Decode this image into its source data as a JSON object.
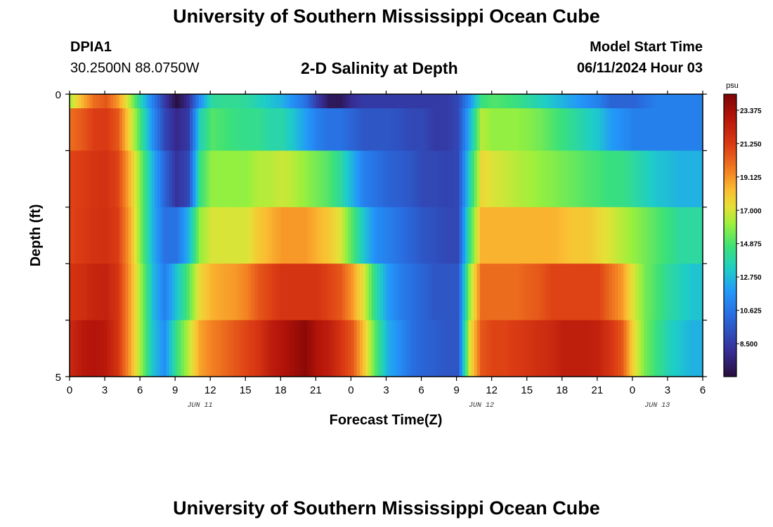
{
  "page": {
    "title": "University of Southern Mississippi Ocean Cube",
    "station_id": "DPIA1",
    "coordinates": "30.2500N  88.0750W",
    "subtitle": "2-D Salinity at Depth",
    "model_start_label": "Model Start Time",
    "model_start_value": "06/11/2024 Hour 03",
    "footer_title": "University of Southern Mississippi Ocean Cube"
  },
  "chart_data": {
    "type": "heatmap",
    "title": "2-D Salinity at Depth",
    "xlabel": "Forecast Time(Z)",
    "ylabel": "Depth (ft)",
    "units": "psu",
    "x_ticks": [
      "0",
      "3",
      "6",
      "9",
      "12",
      "15",
      "18",
      "21",
      "0",
      "3",
      "6",
      "9",
      "12",
      "15",
      "18",
      "21",
      "0",
      "3",
      "6"
    ],
    "date_labels": [
      {
        "label": "JUN 11",
        "hour": 11
      },
      {
        "label": "JUN 12",
        "hour": 35
      },
      {
        "label": "JUN 13",
        "hour": 50
      }
    ],
    "y_ticks": [
      "0",
      "5"
    ],
    "depth_range": [
      0,
      5
    ],
    "time_range_hours": [
      0,
      54
    ],
    "layer_depths_ft": [
      0,
      0.5,
      1.5,
      2.5,
      3.5,
      4.5
    ],
    "colorbar": {
      "label": "psu",
      "range": [
        6.4,
        24.4
      ],
      "ticks": [
        "23.375",
        "21.250",
        "19.125",
        "17.000",
        "14.875",
        "12.750",
        "10.625",
        "8.500"
      ]
    },
    "profiles": [
      {
        "hour": 0,
        "values": [
          16.5,
          20.0,
          21.0,
          21.0,
          21.5,
          22.0
        ]
      },
      {
        "hour": 1,
        "values": [
          18.5,
          20.5,
          21.2,
          21.3,
          21.8,
          22.8
        ]
      },
      {
        "hour": 2,
        "values": [
          20.0,
          21.2,
          21.5,
          21.6,
          22.2,
          23.0
        ]
      },
      {
        "hour": 3,
        "values": [
          20.5,
          21.3,
          21.6,
          21.7,
          22.3,
          22.7
        ]
      },
      {
        "hour": 4,
        "values": [
          19.0,
          20.5,
          21.0,
          21.2,
          21.5,
          21.5
        ]
      },
      {
        "hour": 5,
        "values": [
          16.5,
          17.5,
          18.5,
          18.8,
          19.0,
          19.0
        ]
      },
      {
        "hour": 6,
        "values": [
          13.5,
          14.5,
          15.5,
          15.5,
          16.0,
          16.0
        ]
      },
      {
        "hour": 7,
        "values": [
          11.0,
          11.5,
          12.5,
          12.5,
          12.8,
          13.0
        ]
      },
      {
        "hour": 8,
        "values": [
          8.5,
          9.0,
          10.0,
          10.5,
          11.0,
          11.5
        ]
      },
      {
        "hour": 9,
        "values": [
          6.5,
          7.8,
          8.2,
          10.5,
          13.0,
          14.5
        ]
      },
      {
        "hour": 10,
        "values": [
          8.0,
          8.5,
          9.0,
          12.5,
          15.0,
          16.5
        ]
      },
      {
        "hour": 11,
        "values": [
          11.5,
          13.5,
          14.5,
          16.0,
          17.5,
          18.8
        ]
      },
      {
        "hour": 12,
        "values": [
          14.0,
          15.0,
          16.0,
          17.0,
          18.5,
          19.5
        ]
      },
      {
        "hour": 13,
        "values": [
          14.2,
          14.8,
          16.0,
          17.0,
          18.8,
          20.0
        ]
      },
      {
        "hour": 14,
        "values": [
          14.2,
          14.5,
          16.0,
          17.0,
          19.0,
          20.5
        ]
      },
      {
        "hour": 15,
        "values": [
          14.0,
          14.3,
          16.0,
          17.0,
          19.5,
          21.0
        ]
      },
      {
        "hour": 16,
        "values": [
          13.5,
          14.3,
          16.5,
          18.0,
          20.5,
          21.5
        ]
      },
      {
        "hour": 17,
        "values": [
          13.0,
          13.8,
          16.5,
          18.5,
          21.0,
          22.5
        ]
      },
      {
        "hour": 18,
        "values": [
          12.5,
          13.8,
          16.8,
          19.0,
          21.5,
          23.0
        ]
      },
      {
        "hour": 19,
        "values": [
          11.5,
          13.0,
          16.5,
          19.0,
          21.5,
          23.5
        ]
      },
      {
        "hour": 20,
        "values": [
          10.5,
          12.0,
          16.0,
          19.0,
          21.5,
          24.0
        ]
      },
      {
        "hour": 21,
        "values": [
          8.5,
          11.0,
          15.5,
          18.5,
          21.5,
          23.0
        ]
      },
      {
        "hour": 22,
        "values": [
          7.0,
          10.5,
          15.0,
          18.0,
          21.0,
          22.5
        ]
      },
      {
        "hour": 23,
        "values": [
          7.0,
          10.5,
          14.0,
          17.0,
          20.5,
          21.5
        ]
      },
      {
        "hour": 24,
        "values": [
          8.0,
          10.0,
          12.5,
          15.0,
          19.0,
          20.5
        ]
      },
      {
        "hour": 25,
        "values": [
          8.5,
          9.5,
          11.0,
          13.0,
          17.0,
          18.0
        ]
      },
      {
        "hour": 26,
        "values": [
          8.5,
          9.5,
          10.5,
          11.5,
          14.0,
          15.0
        ]
      },
      {
        "hour": 27,
        "values": [
          8.5,
          9.5,
          10.0,
          11.0,
          12.0,
          12.5
        ]
      },
      {
        "hour": 28,
        "values": [
          8.5,
          9.3,
          9.8,
          10.5,
          11.0,
          11.5
        ]
      },
      {
        "hour": 29,
        "values": [
          8.5,
          9.0,
          9.5,
          10.0,
          10.5,
          10.5
        ]
      },
      {
        "hour": 30,
        "values": [
          8.5,
          9.0,
          9.0,
          9.5,
          10.0,
          10.0
        ]
      },
      {
        "hour": 31,
        "values": [
          8.5,
          8.5,
          9.0,
          9.3,
          9.5,
          9.8
        ]
      },
      {
        "hour": 32,
        "values": [
          8.5,
          8.5,
          8.8,
          9.0,
          9.5,
          9.5
        ]
      },
      {
        "hour": 33,
        "values": [
          9.0,
          9.0,
          9.0,
          9.0,
          9.5,
          9.5
        ]
      },
      {
        "hour": 34,
        "values": [
          11.5,
          12.5,
          13.5,
          14.5,
          16.0,
          17.0
        ]
      },
      {
        "hour": 35,
        "values": [
          14.5,
          16.5,
          17.5,
          18.5,
          20.0,
          20.5
        ]
      },
      {
        "hour": 36,
        "values": [
          15.0,
          16.0,
          17.0,
          18.5,
          20.0,
          21.0
        ]
      },
      {
        "hour": 37,
        "values": [
          14.8,
          16.0,
          16.8,
          18.5,
          20.0,
          21.0
        ]
      },
      {
        "hour": 38,
        "values": [
          14.5,
          16.0,
          16.5,
          18.5,
          20.0,
          21.3
        ]
      },
      {
        "hour": 39,
        "values": [
          14.0,
          15.8,
          16.3,
          18.5,
          20.3,
          21.5
        ]
      },
      {
        "hour": 40,
        "values": [
          13.5,
          15.5,
          16.0,
          18.5,
          20.5,
          21.8
        ]
      },
      {
        "hour": 41,
        "values": [
          13.0,
          15.0,
          15.8,
          18.5,
          21.0,
          22.0
        ]
      },
      {
        "hour": 42,
        "values": [
          12.5,
          14.5,
          15.5,
          18.3,
          21.0,
          22.5
        ]
      },
      {
        "hour": 43,
        "values": [
          12.0,
          14.0,
          15.3,
          18.0,
          21.0,
          22.5
        ]
      },
      {
        "hour": 44,
        "values": [
          11.5,
          13.5,
          15.0,
          18.0,
          21.0,
          22.5
        ]
      },
      {
        "hour": 45,
        "values": [
          11.0,
          13.0,
          14.8,
          17.5,
          21.0,
          22.3
        ]
      },
      {
        "hour": 46,
        "values": [
          10.0,
          12.0,
          14.5,
          17.0,
          20.0,
          21.5
        ]
      },
      {
        "hour": 47,
        "values": [
          10.0,
          11.5,
          14.5,
          16.5,
          19.0,
          20.5
        ]
      },
      {
        "hour": 48,
        "values": [
          10.0,
          11.0,
          14.0,
          16.0,
          17.0,
          17.5
        ]
      },
      {
        "hour": 49,
        "values": [
          10.5,
          11.0,
          13.5,
          15.5,
          15.5,
          15.5
        ]
      },
      {
        "hour": 50,
        "values": [
          11.0,
          11.0,
          13.0,
          15.0,
          14.8,
          14.5
        ]
      },
      {
        "hour": 51,
        "values": [
          11.0,
          11.0,
          12.8,
          14.5,
          14.0,
          13.5
        ]
      },
      {
        "hour": 52,
        "values": [
          11.0,
          11.0,
          12.5,
          14.0,
          13.5,
          13.0
        ]
      },
      {
        "hour": 53,
        "values": [
          11.0,
          11.0,
          12.5,
          14.0,
          13.0,
          12.5
        ]
      }
    ]
  }
}
